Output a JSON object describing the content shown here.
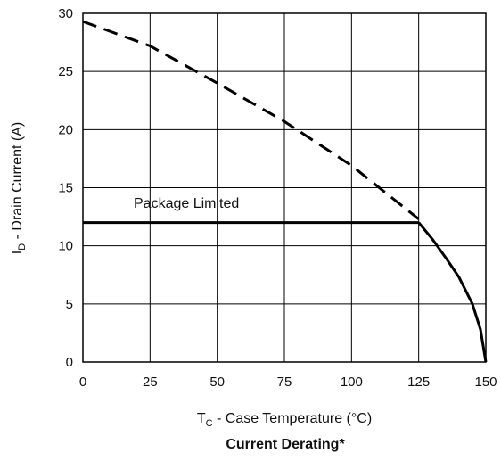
{
  "chart_data": {
    "type": "line",
    "title": "Current Derating*",
    "xlabel": {
      "main": "T",
      "sub": "C",
      "rest": " - Case Temperature (°C)"
    },
    "ylabel": {
      "main": "I",
      "sub": "D",
      "rest": " - Drain Current (A)"
    },
    "xlim": [
      0,
      150
    ],
    "ylim": [
      0,
      30
    ],
    "xticks": [
      0,
      25,
      50,
      75,
      100,
      125,
      150
    ],
    "yticks": [
      0,
      5,
      10,
      15,
      20,
      25,
      30
    ],
    "grid": true,
    "annotation": "Package Limited",
    "series": [
      {
        "style": "dashed",
        "x": [
          0,
          25,
          50,
          75,
          100,
          125
        ],
        "y": [
          29.3,
          27.2,
          24.0,
          20.7,
          16.9,
          12.3
        ]
      },
      {
        "style": "solid",
        "x": [
          0,
          125
        ],
        "y": [
          12.0,
          12.0
        ]
      },
      {
        "style": "solid",
        "x": [
          125,
          130,
          135,
          140,
          145,
          148,
          150
        ],
        "y": [
          12.0,
          10.6,
          9.0,
          7.3,
          5.0,
          2.8,
          0
        ]
      }
    ]
  }
}
